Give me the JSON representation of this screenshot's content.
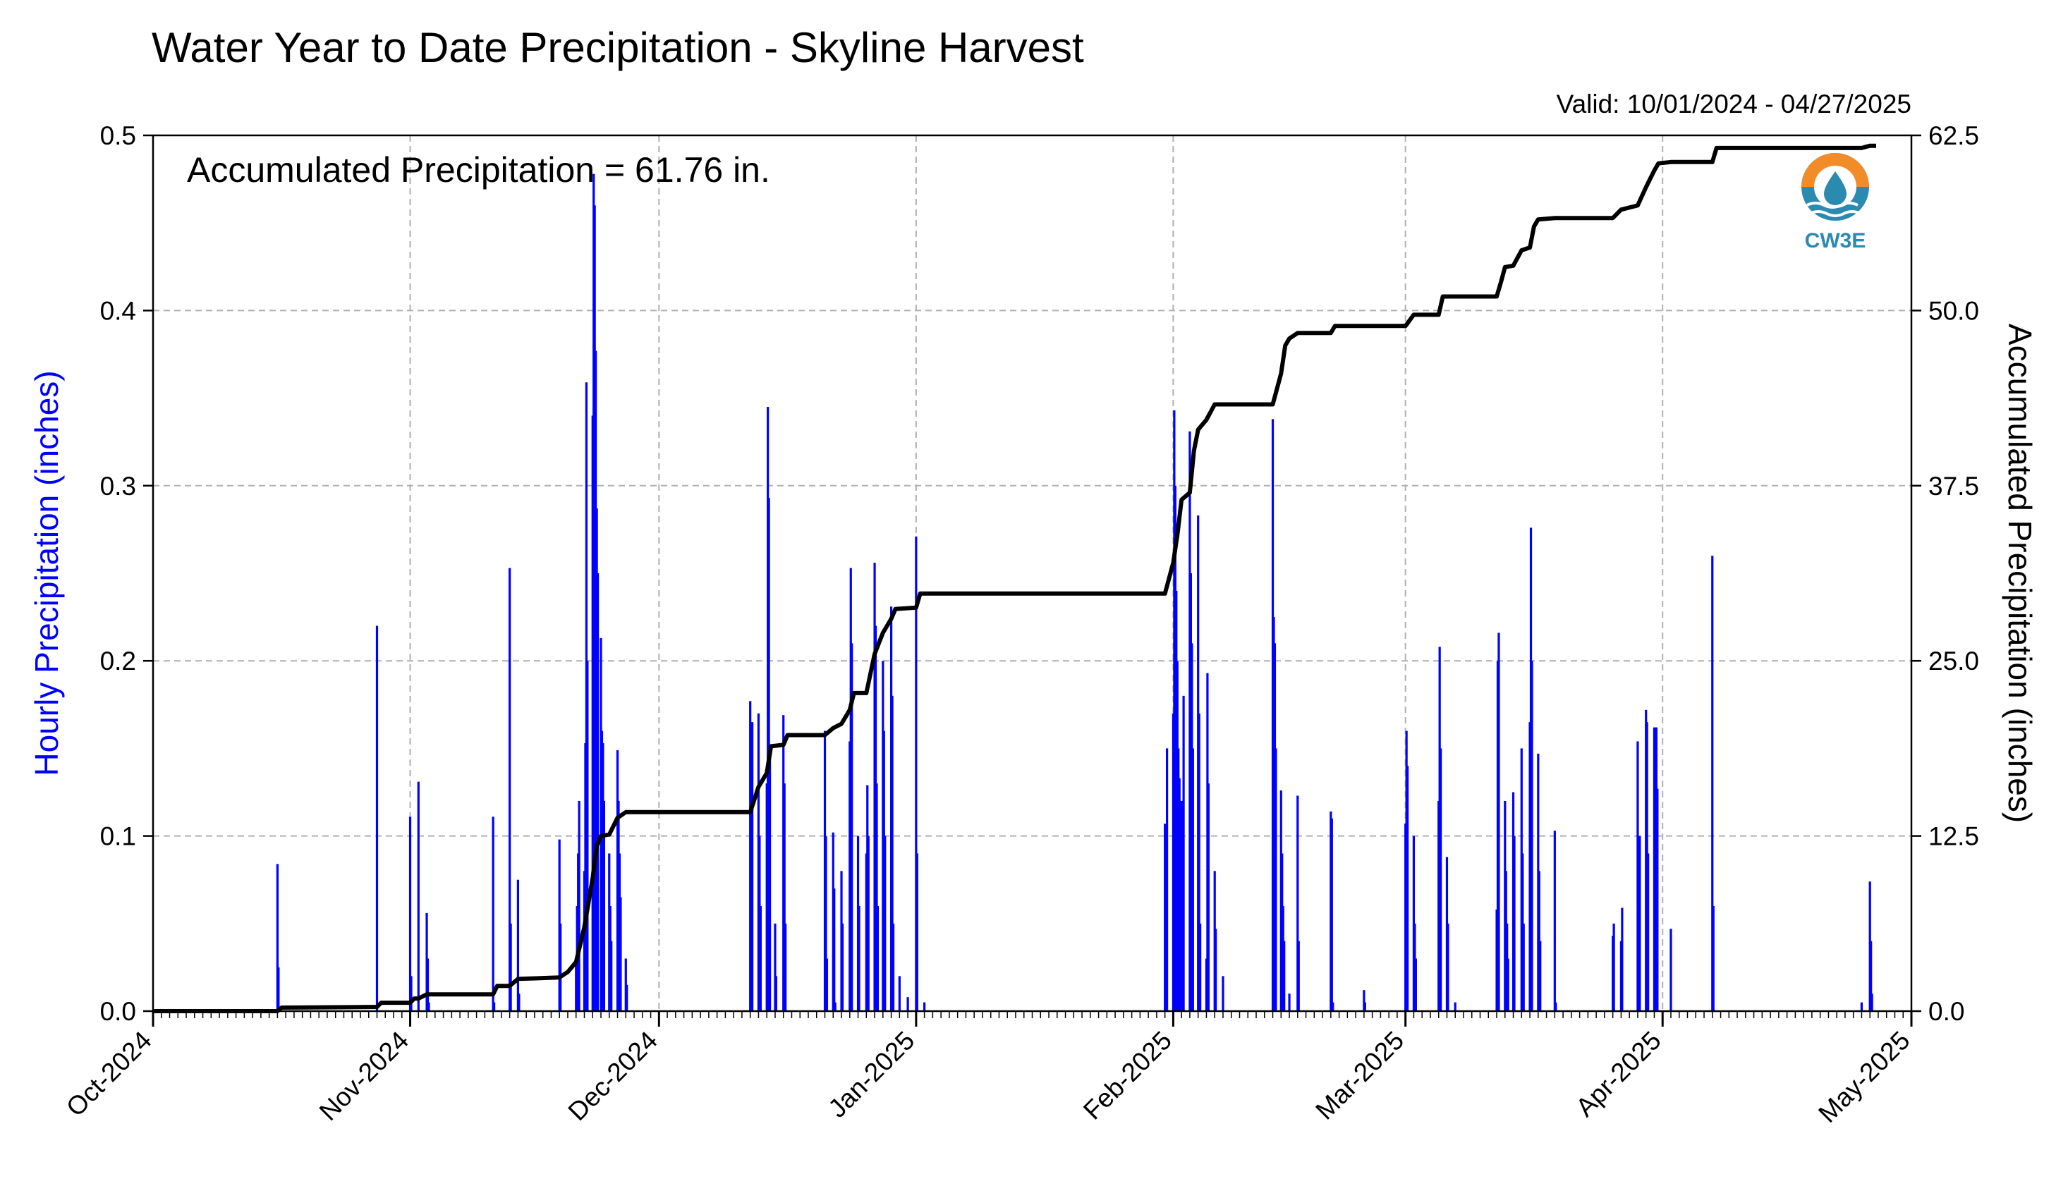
{
  "title": "Water Year to Date Precipitation - Skyline Harvest",
  "valid": "Valid: 10/01/2024 - 04/27/2025",
  "annotation": "Accumulated Precipitation = 61.76 in.",
  "logo": {
    "text": "CW3E",
    "colors": {
      "orange": "#f28c28",
      "blue": "#2a8ab0"
    }
  },
  "colors": {
    "bars": "#0000ff",
    "line": "#000000",
    "grid": "#b0b0b0"
  },
  "chart_data": {
    "type": "bar",
    "xlabel": "",
    "ylabel": "Hourly Precipitation (inches)",
    "y2label": "Accumulated Precipitation (inches)",
    "ylim": [
      0,
      0.5
    ],
    "y2lim": [
      0,
      62.5
    ],
    "yticks": [
      "0.0",
      "0.1",
      "0.2",
      "0.3",
      "0.4",
      "0.5"
    ],
    "y2ticks": [
      "0.0",
      "12.5",
      "25.0",
      "37.5",
      "50.0",
      "62.5"
    ],
    "xlim": [
      "2024-10-01",
      "2025-05-01"
    ],
    "xticks": [
      "Oct-2024",
      "Nov-2024",
      "Dec-2024",
      "Jan-2025",
      "Feb-2025",
      "Mar-2025",
      "Apr-2025",
      "May-2025"
    ],
    "grid": true,
    "series": [
      {
        "name": "Hourly Precipitation (inches)",
        "type": "bar",
        "axis": "left",
        "points": [
          [
            "2024-10-16",
            0.084
          ],
          [
            "2024-10-16",
            0.025
          ],
          [
            "2024-10-28",
            0.22
          ],
          [
            "2024-11-01",
            0.111
          ],
          [
            "2024-11-01",
            0.02
          ],
          [
            "2024-11-02",
            0.131
          ],
          [
            "2024-11-03",
            0.056
          ],
          [
            "2024-11-03",
            0.03
          ],
          [
            "2024-11-03",
            0.005
          ],
          [
            "2024-11-11",
            0.111
          ],
          [
            "2024-11-11",
            0.005
          ],
          [
            "2024-11-13",
            0.253
          ],
          [
            "2024-11-13",
            0.05
          ],
          [
            "2024-11-14",
            0.075
          ],
          [
            "2024-11-14",
            0.01
          ],
          [
            "2024-11-19",
            0.098
          ],
          [
            "2024-11-19",
            0.05
          ],
          [
            "2024-11-21",
            0.03
          ],
          [
            "2024-11-21",
            0.06
          ],
          [
            "2024-11-21",
            0.09
          ],
          [
            "2024-11-21",
            0.12
          ],
          [
            "2024-11-22",
            0.08
          ],
          [
            "2024-11-22",
            0.153
          ],
          [
            "2024-11-22",
            0.359
          ],
          [
            "2024-11-22",
            0.2
          ],
          [
            "2024-11-23",
            0.34
          ],
          [
            "2024-11-23",
            0.478
          ],
          [
            "2024-11-23",
            0.46
          ],
          [
            "2024-11-23",
            0.377
          ],
          [
            "2024-11-23",
            0.287
          ],
          [
            "2024-11-23",
            0.25
          ],
          [
            "2024-11-24",
            0.213
          ],
          [
            "2024-11-24",
            0.16
          ],
          [
            "2024-11-24",
            0.153
          ],
          [
            "2024-11-24",
            0.12
          ],
          [
            "2024-11-25",
            0.09
          ],
          [
            "2024-11-25",
            0.06
          ],
          [
            "2024-11-25",
            0.04
          ],
          [
            "2024-11-26",
            0.149
          ],
          [
            "2024-11-26",
            0.12
          ],
          [
            "2024-11-26",
            0.09
          ],
          [
            "2024-11-26",
            0.065
          ],
          [
            "2024-11-27",
            0.03
          ],
          [
            "2024-11-27",
            0.015
          ],
          [
            "2024-12-12",
            0.177
          ],
          [
            "2024-12-12",
            0.12
          ],
          [
            "2024-12-12",
            0.165
          ],
          [
            "2024-12-13",
            0.17
          ],
          [
            "2024-12-13",
            0.1
          ],
          [
            "2024-12-13",
            0.06
          ],
          [
            "2024-12-14",
            0.13
          ],
          [
            "2024-12-14",
            0.345
          ],
          [
            "2024-12-14",
            0.293
          ],
          [
            "2024-12-14",
            0.15
          ],
          [
            "2024-12-15",
            0.05
          ],
          [
            "2024-12-15",
            0.02
          ],
          [
            "2024-12-16",
            0.169
          ],
          [
            "2024-12-16",
            0.13
          ],
          [
            "2024-12-16",
            0.05
          ],
          [
            "2024-12-21",
            0.16
          ],
          [
            "2024-12-21",
            0.1
          ],
          [
            "2024-12-21",
            0.03
          ],
          [
            "2024-12-22",
            0.102
          ],
          [
            "2024-12-22",
            0.07
          ],
          [
            "2024-12-22",
            0.005
          ],
          [
            "2024-12-23",
            0.08
          ],
          [
            "2024-12-23",
            0.05
          ],
          [
            "2024-12-24",
            0.154
          ],
          [
            "2024-12-24",
            0.253
          ],
          [
            "2024-12-24",
            0.21
          ],
          [
            "2024-12-25",
            0.1
          ],
          [
            "2024-12-25",
            0.06
          ],
          [
            "2024-12-26",
            0.09
          ],
          [
            "2024-12-26",
            0.129
          ],
          [
            "2024-12-26",
            0.1
          ],
          [
            "2024-12-27",
            0.256
          ],
          [
            "2024-12-27",
            0.22
          ],
          [
            "2024-12-27",
            0.13
          ],
          [
            "2024-12-27",
            0.06
          ],
          [
            "2024-12-28",
            0.2
          ],
          [
            "2024-12-28",
            0.16
          ],
          [
            "2024-12-28",
            0.1
          ],
          [
            "2024-12-29",
            0.231
          ],
          [
            "2024-12-29",
            0.18
          ],
          [
            "2024-12-29",
            0.05
          ],
          [
            "2024-12-30",
            0.02
          ],
          [
            "2024-12-31",
            0.008
          ],
          [
            "2025-01-01",
            0.271
          ],
          [
            "2025-01-01",
            0.09
          ],
          [
            "2025-01-02",
            0.005
          ],
          [
            "2025-01-31",
            0.107
          ],
          [
            "2025-01-31",
            0.08
          ],
          [
            "2025-01-31",
            0.15
          ],
          [
            "2025-02-01",
            0.17
          ],
          [
            "2025-02-01",
            0.343
          ],
          [
            "2025-02-01",
            0.3
          ],
          [
            "2025-02-01",
            0.24
          ],
          [
            "2025-02-01",
            0.2
          ],
          [
            "2025-02-01",
            0.15
          ],
          [
            "2025-02-01",
            0.133
          ],
          [
            "2025-02-02",
            0.12
          ],
          [
            "2025-02-02",
            0.1
          ],
          [
            "2025-02-02",
            0.18
          ],
          [
            "2025-02-03",
            0.331
          ],
          [
            "2025-02-03",
            0.25
          ],
          [
            "2025-02-03",
            0.21
          ],
          [
            "2025-02-03",
            0.15
          ],
          [
            "2025-02-04",
            0.283
          ],
          [
            "2025-02-04",
            0.17
          ],
          [
            "2025-02-04",
            0.05
          ],
          [
            "2025-02-05",
            0.03
          ],
          [
            "2025-02-05",
            0.193
          ],
          [
            "2025-02-05",
            0.13
          ],
          [
            "2025-02-06",
            0.08
          ],
          [
            "2025-02-06",
            0.047
          ],
          [
            "2025-02-07",
            0.02
          ],
          [
            "2025-02-13",
            0.338
          ],
          [
            "2025-02-13",
            0.225
          ],
          [
            "2025-02-13",
            0.21
          ],
          [
            "2025-02-13",
            0.15
          ],
          [
            "2025-02-14",
            0.126
          ],
          [
            "2025-02-14",
            0.09
          ],
          [
            "2025-02-14",
            0.06
          ],
          [
            "2025-02-14",
            0.04
          ],
          [
            "2025-02-15",
            0.01
          ],
          [
            "2025-02-16",
            0.123
          ],
          [
            "2025-02-16",
            0.04
          ],
          [
            "2025-02-20",
            0.114
          ],
          [
            "2025-02-20",
            0.11
          ],
          [
            "2025-02-20",
            0.005
          ],
          [
            "2025-02-24",
            0.012
          ],
          [
            "2025-02-24",
            0.005
          ],
          [
            "2025-03-01",
            0.107
          ],
          [
            "2025-03-01",
            0.16
          ],
          [
            "2025-03-01",
            0.14
          ],
          [
            "2025-03-02",
            0.1
          ],
          [
            "2025-03-02",
            0.05
          ],
          [
            "2025-03-02",
            0.03
          ],
          [
            "2025-03-05",
            0.12
          ],
          [
            "2025-03-05",
            0.208
          ],
          [
            "2025-03-05",
            0.15
          ],
          [
            "2025-03-06",
            0.088
          ],
          [
            "2025-03-06",
            0.05
          ],
          [
            "2025-03-07",
            0.005
          ],
          [
            "2025-03-12",
            0.058
          ],
          [
            "2025-03-12",
            0.2
          ],
          [
            "2025-03-12",
            0.216
          ],
          [
            "2025-03-13",
            0.12
          ],
          [
            "2025-03-13",
            0.08
          ],
          [
            "2025-03-13",
            0.05
          ],
          [
            "2025-03-13",
            0.03
          ],
          [
            "2025-03-14",
            0.125
          ],
          [
            "2025-03-14",
            0.1
          ],
          [
            "2025-03-15",
            0.15
          ],
          [
            "2025-03-15",
            0.09
          ],
          [
            "2025-03-15",
            0.05
          ],
          [
            "2025-03-16",
            0.165
          ],
          [
            "2025-03-16",
            0.276
          ],
          [
            "2025-03-16",
            0.2
          ],
          [
            "2025-03-17",
            0.147
          ],
          [
            "2025-03-17",
            0.08
          ],
          [
            "2025-03-17",
            0.04
          ],
          [
            "2025-03-19",
            0.103
          ],
          [
            "2025-03-19",
            0.005
          ],
          [
            "2025-03-26",
            0.043
          ],
          [
            "2025-03-26",
            0.05
          ],
          [
            "2025-03-27",
            0.04
          ],
          [
            "2025-03-27",
            0.059
          ],
          [
            "2025-03-29",
            0.154
          ],
          [
            "2025-03-29",
            0.09
          ],
          [
            "2025-03-29",
            0.1
          ],
          [
            "2025-03-30",
            0.172
          ],
          [
            "2025-03-30",
            0.165
          ],
          [
            "2025-03-30",
            0.09
          ],
          [
            "2025-03-31",
            0.162
          ],
          [
            "2025-03-31",
            0.12
          ],
          [
            "2025-03-31",
            0.162
          ],
          [
            "2025-03-31",
            0.127
          ],
          [
            "2025-04-02",
            0.047
          ],
          [
            "2025-04-07",
            0.26
          ],
          [
            "2025-04-07",
            0.06
          ],
          [
            "2025-04-25",
            0.005
          ],
          [
            "2025-04-26",
            0.074
          ],
          [
            "2025-04-26",
            0.04
          ],
          [
            "2025-04-26",
            0.01
          ]
        ]
      },
      {
        "name": "Accumulated Precipitation (inches)",
        "type": "line",
        "axis": "right",
        "points": [
          [
            "2024-10-01",
            0.0
          ],
          [
            "2024-10-16",
            0.0
          ],
          [
            "2024-10-16",
            0.25
          ],
          [
            "2024-10-28",
            0.3
          ],
          [
            "2024-10-28",
            0.6
          ],
          [
            "2024-11-01",
            0.6
          ],
          [
            "2024-11-01",
            0.9
          ],
          [
            "2024-11-02",
            0.9
          ],
          [
            "2024-11-03",
            1.2
          ],
          [
            "2024-11-11",
            1.2
          ],
          [
            "2024-11-11",
            1.8
          ],
          [
            "2024-11-13",
            1.8
          ],
          [
            "2024-11-14",
            2.3
          ],
          [
            "2024-11-19",
            2.4
          ],
          [
            "2024-11-20",
            2.8
          ],
          [
            "2024-11-21",
            3.5
          ],
          [
            "2024-11-22",
            6.0
          ],
          [
            "2024-11-23",
            9.5
          ],
          [
            "2024-11-23",
            11.8
          ],
          [
            "2024-11-24",
            12.5
          ],
          [
            "2024-11-25",
            12.6
          ],
          [
            "2024-11-26",
            13.8
          ],
          [
            "2024-11-27",
            14.2
          ],
          [
            "2024-12-12",
            14.2
          ],
          [
            "2024-12-13",
            16.0
          ],
          [
            "2024-12-14",
            17.0
          ],
          [
            "2024-12-14",
            18.9
          ],
          [
            "2024-12-16",
            19.0
          ],
          [
            "2024-12-16",
            19.7
          ],
          [
            "2024-12-21",
            19.7
          ],
          [
            "2024-12-22",
            20.2
          ],
          [
            "2024-12-23",
            20.5
          ],
          [
            "2024-12-24",
            21.5
          ],
          [
            "2024-12-24",
            22.7
          ],
          [
            "2024-12-26",
            22.7
          ],
          [
            "2024-12-27",
            25.5
          ],
          [
            "2024-12-28",
            27.0
          ],
          [
            "2024-12-29",
            28.0
          ],
          [
            "2024-12-29",
            28.7
          ],
          [
            "2025-01-01",
            28.8
          ],
          [
            "2025-01-01",
            29.8
          ],
          [
            "2025-01-31",
            29.8
          ],
          [
            "2025-02-01",
            32.0
          ],
          [
            "2025-02-01",
            34.0
          ],
          [
            "2025-02-02",
            36.5
          ],
          [
            "2025-02-03",
            37.0
          ],
          [
            "2025-02-03",
            40.0
          ],
          [
            "2025-02-04",
            41.5
          ],
          [
            "2025-02-05",
            42.2
          ],
          [
            "2025-02-06",
            43.3
          ],
          [
            "2025-02-13",
            43.3
          ],
          [
            "2025-02-14",
            45.5
          ],
          [
            "2025-02-14",
            47.5
          ],
          [
            "2025-02-15",
            48.0
          ],
          [
            "2025-02-16",
            48.4
          ],
          [
            "2025-02-20",
            48.4
          ],
          [
            "2025-02-20",
            48.9
          ],
          [
            "2025-03-01",
            48.9
          ],
          [
            "2025-03-02",
            49.7
          ],
          [
            "2025-03-05",
            49.7
          ],
          [
            "2025-03-05",
            51.0
          ],
          [
            "2025-03-12",
            51.0
          ],
          [
            "2025-03-12",
            52.0
          ],
          [
            "2025-03-13",
            53.1
          ],
          [
            "2025-03-14",
            53.2
          ],
          [
            "2025-03-15",
            54.3
          ],
          [
            "2025-03-16",
            54.5
          ],
          [
            "2025-03-16",
            56.0
          ],
          [
            "2025-03-17",
            56.5
          ],
          [
            "2025-03-19",
            56.6
          ],
          [
            "2025-03-26",
            56.6
          ],
          [
            "2025-03-27",
            57.2
          ],
          [
            "2025-03-29",
            57.5
          ],
          [
            "2025-03-30",
            58.8
          ],
          [
            "2025-03-31",
            60.0
          ],
          [
            "2025-03-31",
            60.5
          ],
          [
            "2025-04-02",
            60.6
          ],
          [
            "2025-04-07",
            60.6
          ],
          [
            "2025-04-07",
            61.6
          ],
          [
            "2025-04-25",
            61.6
          ],
          [
            "2025-04-26",
            61.76
          ]
        ]
      }
    ]
  }
}
